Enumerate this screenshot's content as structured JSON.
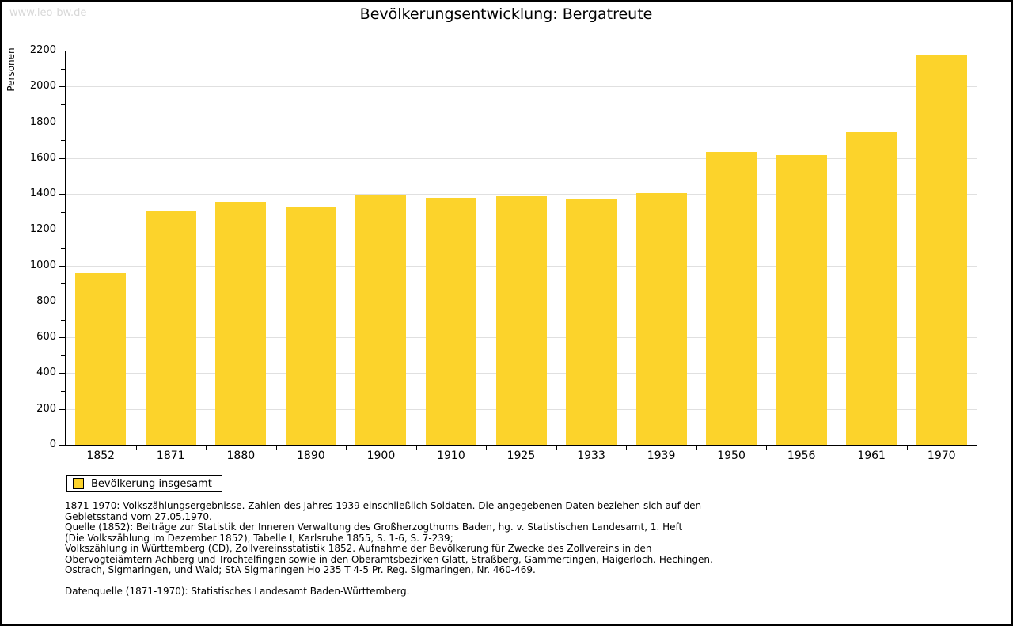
{
  "watermark": "www.leo-bw.de",
  "chart_data": {
    "type": "bar",
    "title": "Bevölkerungsentwicklung: Bergatreute",
    "xlabel": "",
    "ylabel": "Personen",
    "categories": [
      "1852",
      "1871",
      "1880",
      "1890",
      "1900",
      "1910",
      "1925",
      "1933",
      "1939",
      "1950",
      "1956",
      "1961",
      "1970"
    ],
    "values": [
      960,
      1305,
      1355,
      1325,
      1395,
      1380,
      1385,
      1370,
      1405,
      1635,
      1615,
      1745,
      2180
    ],
    "ylim": [
      0,
      2200
    ],
    "ytick_step": 200,
    "yminor_step": 100,
    "grid": true,
    "legend_position": "bottom-left",
    "series_name": "Bevölkerung insgesamt"
  },
  "colors": {
    "bar": "#fcd32b",
    "grid": "#e0e0e0",
    "axis": "#000000",
    "watermark": "#d8d8d8"
  },
  "legend": {
    "label": "Bevölkerung insgesamt"
  },
  "footnotes": {
    "lines": [
      "1871-1970: Volkszählungsergebnisse. Zahlen des Jahres 1939 einschließlich Soldaten. Die angegebenen Daten beziehen sich auf den",
      "Gebietsstand vom 27.05.1970.",
      "Quelle (1852): Beiträge zur Statistik der Inneren Verwaltung des Großherzogthums Baden, hg. v. Statistischen Landesamt, 1. Heft",
      "(Die Volkszählung im Dezember 1852), Tabelle I, Karlsruhe 1855, S. 1-6, S. 7-239;",
      "Volkszählung in Württemberg (CD), Zollvereinsstatistik 1852. Aufnahme der Bevölkerung für Zwecke des Zollvereins in den",
      "Obervogteiämtern Achberg und Trochtelfingen sowie in den Oberamtsbezirken Glatt, Straßberg, Gammertingen, Haigerloch, Hechingen,",
      "Ostrach, Sigmaringen, und Wald; StA Sigmaringen Ho 235 T 4-5 Pr. Reg. Sigmaringen, Nr. 460-469."
    ]
  },
  "datasource": "Datenquelle (1871-1970): Statistisches Landesamt Baden-Württemberg."
}
